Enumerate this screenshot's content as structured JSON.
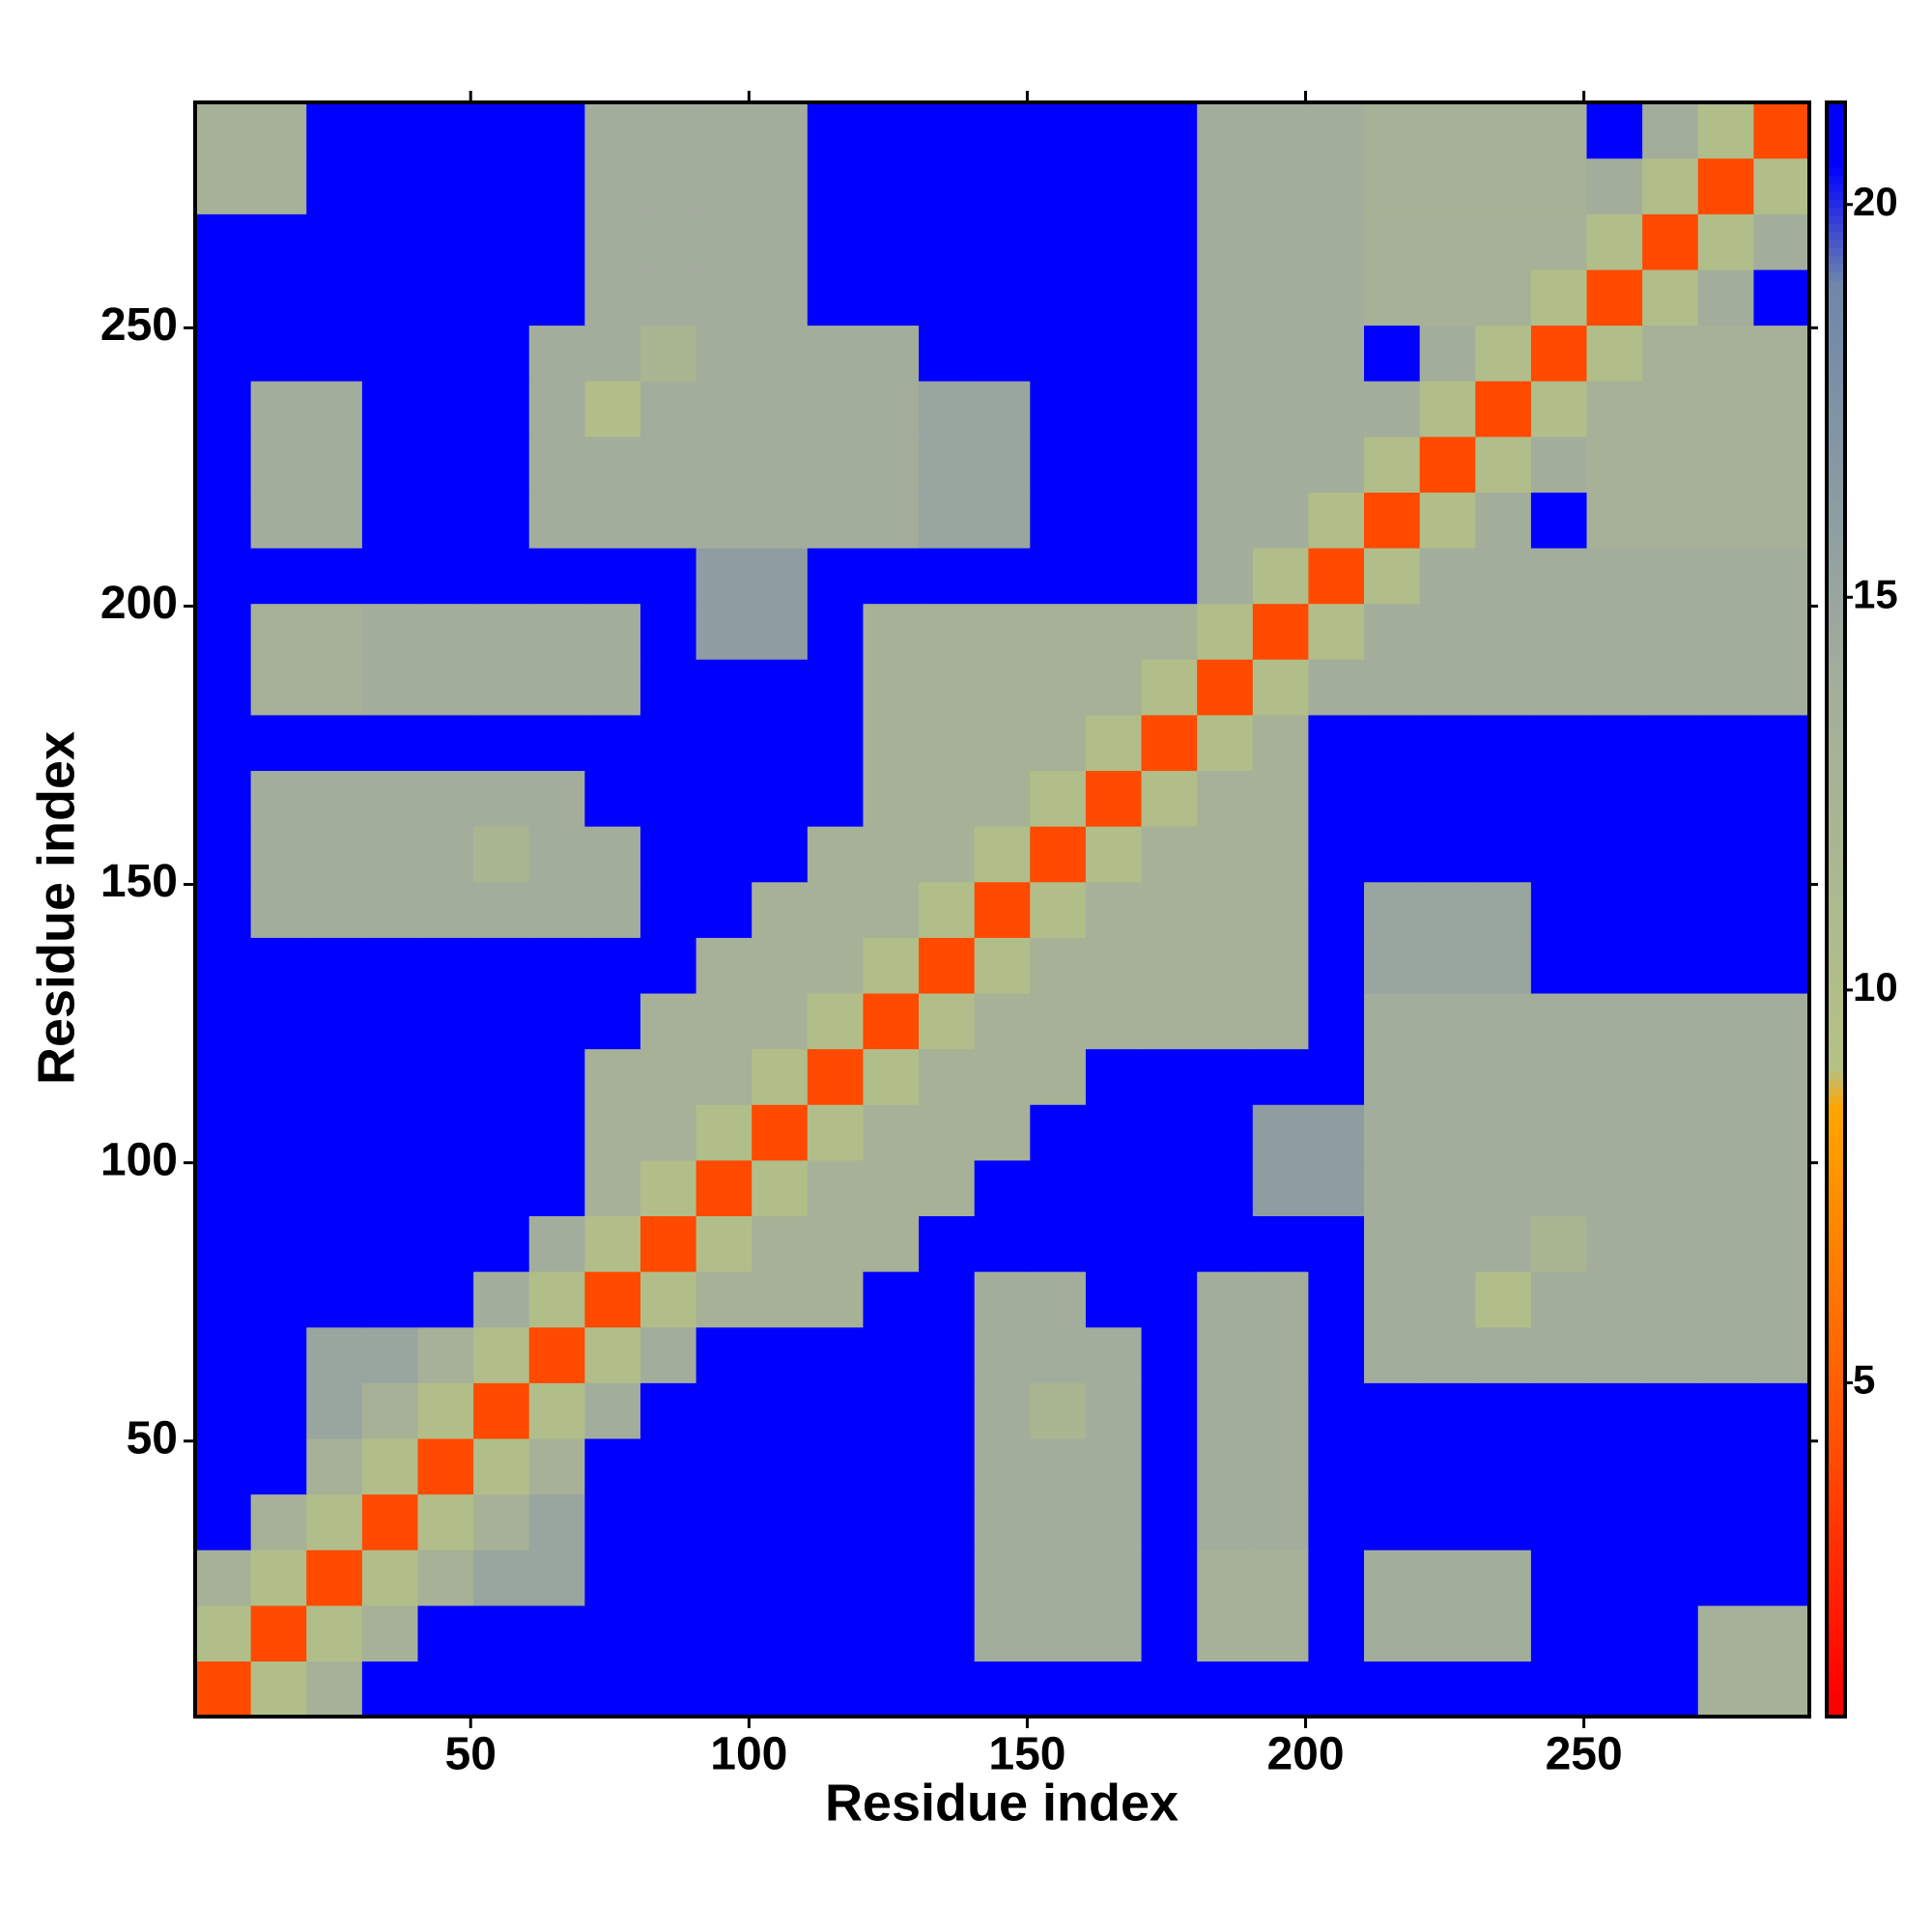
{
  "chart_data": {
    "type": "heatmap",
    "xlabel": "Residue index",
    "ylabel": "Residue index",
    "xlim": [
      0.5,
      290.5
    ],
    "ylim": [
      0.5,
      290.5
    ],
    "xticks": [
      50,
      100,
      150,
      200,
      250
    ],
    "yticks": [
      50,
      100,
      150,
      200,
      250
    ],
    "clim": [
      0.75,
      21.3
    ],
    "cticks": [
      5,
      10,
      15,
      20
    ],
    "colorscale": [
      [
        1,
        "#ff0000"
      ],
      [
        4,
        "#ff4a00"
      ],
      [
        8.5,
        "#ffa500"
      ],
      [
        9,
        "#b4c284"
      ],
      [
        14,
        "#a3ad9c"
      ],
      [
        19,
        "#6f86aa"
      ],
      [
        20.5,
        "#0000ff"
      ]
    ],
    "x": [
      5.5,
      15.5,
      25.5,
      35.5,
      45.5,
      55.5,
      65.5,
      75.5,
      85.5,
      95.5,
      105.5,
      115.5,
      125.5,
      135.5,
      145.5,
      155.5,
      165.5,
      175.5,
      185.5,
      195.5,
      205.5,
      215.5,
      225.5,
      235.5,
      245.5,
      255.5,
      265.5,
      275.5,
      285.5
    ],
    "y": [
      5.5,
      15.5,
      25.5,
      35.5,
      45.5,
      55.5,
      65.5,
      75.5,
      85.5,
      95.5,
      105.5,
      115.5,
      125.5,
      135.5,
      145.5,
      155.5,
      165.5,
      175.5,
      185.5,
      195.5,
      205.5,
      215.5,
      225.5,
      235.5,
      245.5,
      255.5,
      265.5,
      275.5,
      285.5
    ],
    "z": [
      [
        4,
        10,
        13,
        21,
        21,
        21,
        21,
        21,
        21,
        21,
        21,
        21,
        21,
        21,
        21,
        21,
        21,
        21,
        21,
        21,
        21,
        21,
        21,
        21,
        21,
        21,
        21,
        13,
        13
      ],
      [
        10,
        4,
        10,
        13,
        21,
        21,
        21,
        21,
        21,
        21,
        21,
        21,
        21,
        21,
        14,
        14,
        14,
        21,
        13,
        13,
        21,
        14,
        14,
        14,
        21,
        21,
        21,
        13,
        13
      ],
      [
        13,
        10,
        4,
        10,
        13,
        15,
        15,
        21,
        21,
        21,
        21,
        21,
        21,
        21,
        14,
        14,
        14,
        21,
        13,
        13,
        21,
        14,
        14,
        14,
        21,
        21,
        21,
        21,
        21
      ],
      [
        21,
        13,
        10,
        4,
        10,
        13,
        15,
        21,
        21,
        21,
        21,
        21,
        21,
        21,
        14,
        14,
        14,
        21,
        14,
        14,
        21,
        21,
        21,
        21,
        21,
        21,
        21,
        21,
        21
      ],
      [
        21,
        21,
        13,
        10,
        4,
        10,
        13,
        21,
        21,
        21,
        21,
        21,
        21,
        21,
        14,
        14,
        14,
        21,
        14,
        14,
        21,
        21,
        21,
        21,
        21,
        21,
        21,
        21,
        21
      ],
      [
        21,
        21,
        15,
        13,
        10,
        4,
        10,
        14,
        21,
        21,
        21,
        21,
        21,
        21,
        14,
        12,
        14,
        21,
        14,
        14,
        21,
        21,
        21,
        21,
        21,
        21,
        21,
        21,
        21
      ],
      [
        21,
        21,
        15,
        15,
        13,
        10,
        4,
        10,
        14,
        21,
        21,
        21,
        21,
        21,
        14,
        14,
        14,
        21,
        14,
        14,
        21,
        14,
        14,
        14,
        14,
        14,
        14,
        14,
        14
      ],
      [
        21,
        21,
        21,
        21,
        21,
        14,
        10,
        4,
        10,
        13,
        13,
        13,
        21,
        21,
        14,
        14,
        21,
        21,
        14,
        14,
        21,
        14,
        14,
        10,
        14,
        14,
        14,
        14,
        14
      ],
      [
        21,
        21,
        21,
        21,
        21,
        21,
        14,
        10,
        4,
        10,
        13,
        13,
        13,
        21,
        21,
        21,
        21,
        21,
        21,
        21,
        21,
        14,
        14,
        14,
        12,
        14,
        14,
        14,
        14
      ],
      [
        21,
        21,
        21,
        21,
        21,
        21,
        21,
        13,
        10,
        4,
        10,
        13,
        13,
        13,
        21,
        21,
        21,
        21,
        21,
        16,
        16,
        14,
        14,
        14,
        14,
        14,
        14,
        14,
        14
      ],
      [
        21,
        21,
        21,
        21,
        21,
        21,
        21,
        13,
        13,
        10,
        4,
        10,
        13,
        13,
        13,
        21,
        21,
        21,
        21,
        16,
        16,
        14,
        14,
        14,
        14,
        14,
        14,
        14,
        14
      ],
      [
        21,
        21,
        21,
        21,
        21,
        21,
        21,
        13,
        13,
        13,
        10,
        4,
        10,
        13,
        13,
        13,
        21,
        21,
        21,
        21,
        21,
        14,
        14,
        14,
        14,
        14,
        14,
        14,
        14
      ],
      [
        21,
        21,
        21,
        21,
        21,
        21,
        21,
        21,
        13,
        13,
        13,
        10,
        4,
        10,
        13,
        13,
        13,
        13,
        13,
        13,
        21,
        14,
        14,
        14,
        14,
        14,
        14,
        14,
        14
      ],
      [
        21,
        21,
        21,
        21,
        21,
        21,
        21,
        21,
        21,
        13,
        13,
        13,
        10,
        4,
        10,
        13,
        13,
        13,
        13,
        13,
        21,
        15,
        15,
        15,
        21,
        21,
        21,
        21,
        21
      ],
      [
        21,
        14,
        14,
        14,
        14,
        14,
        14,
        14,
        21,
        21,
        13,
        13,
        13,
        10,
        4,
        10,
        13,
        13,
        13,
        13,
        21,
        15,
        15,
        15,
        21,
        21,
        21,
        21,
        21
      ],
      [
        21,
        14,
        14,
        14,
        14,
        12,
        14,
        14,
        21,
        21,
        21,
        13,
        13,
        13,
        10,
        4,
        10,
        13,
        13,
        13,
        21,
        21,
        21,
        21,
        21,
        21,
        21,
        21,
        21
      ],
      [
        21,
        14,
        14,
        14,
        14,
        14,
        14,
        21,
        21,
        21,
        21,
        21,
        13,
        13,
        13,
        10,
        4,
        10,
        13,
        13,
        21,
        21,
        21,
        21,
        21,
        21,
        21,
        21,
        21
      ],
      [
        21,
        21,
        21,
        21,
        21,
        21,
        21,
        21,
        21,
        21,
        21,
        21,
        13,
        13,
        13,
        13,
        10,
        4,
        10,
        13,
        21,
        21,
        21,
        21,
        21,
        21,
        21,
        21,
        21
      ],
      [
        21,
        13,
        13,
        14,
        14,
        14,
        14,
        14,
        21,
        21,
        21,
        21,
        13,
        13,
        13,
        13,
        13,
        10,
        4,
        10,
        14,
        14,
        14,
        14,
        14,
        14,
        14,
        14,
        14
      ],
      [
        21,
        13,
        13,
        14,
        14,
        14,
        14,
        14,
        21,
        16,
        16,
        21,
        13,
        13,
        13,
        13,
        13,
        13,
        10,
        4,
        10,
        14,
        14,
        14,
        14,
        14,
        14,
        14,
        14
      ],
      [
        21,
        21,
        21,
        21,
        21,
        21,
        21,
        21,
        21,
        16,
        16,
        21,
        21,
        21,
        21,
        21,
        21,
        21,
        14,
        10,
        4,
        10,
        14,
        14,
        14,
        14,
        14,
        14,
        14
      ],
      [
        21,
        14,
        14,
        21,
        21,
        21,
        14,
        14,
        14,
        14,
        14,
        14,
        14,
        15,
        15,
        21,
        21,
        21,
        14,
        14,
        10,
        4,
        10,
        14,
        21,
        13,
        13,
        13,
        13
      ],
      [
        21,
        14,
        14,
        21,
        21,
        21,
        14,
        14,
        14,
        14,
        14,
        14,
        14,
        15,
        15,
        21,
        21,
        21,
        14,
        14,
        14,
        10,
        4,
        10,
        14,
        13,
        13,
        13,
        13
      ],
      [
        21,
        14,
        14,
        21,
        21,
        21,
        14,
        10,
        14,
        14,
        14,
        14,
        14,
        15,
        15,
        21,
        21,
        21,
        14,
        14,
        14,
        14,
        10,
        4,
        10,
        13,
        13,
        13,
        13
      ],
      [
        21,
        21,
        21,
        21,
        21,
        21,
        14,
        14,
        12,
        14,
        14,
        14,
        14,
        21,
        21,
        21,
        21,
        21,
        14,
        14,
        14,
        21,
        14,
        10,
        4,
        10,
        13,
        13,
        13
      ],
      [
        21,
        21,
        21,
        21,
        21,
        21,
        21,
        14,
        14,
        14,
        14,
        21,
        21,
        21,
        21,
        21,
        21,
        21,
        14,
        14,
        14,
        13,
        13,
        13,
        10,
        4,
        10,
        14,
        21
      ],
      [
        21,
        21,
        21,
        21,
        21,
        21,
        21,
        14,
        14,
        14,
        14,
        21,
        21,
        21,
        21,
        21,
        21,
        21,
        14,
        14,
        14,
        13,
        13,
        13,
        13,
        10,
        4,
        10,
        14
      ],
      [
        13,
        13,
        21,
        21,
        21,
        21,
        21,
        14,
        14,
        14,
        14,
        21,
        21,
        21,
        21,
        21,
        21,
        21,
        14,
        14,
        14,
        13,
        13,
        13,
        13,
        14,
        10,
        4,
        10
      ],
      [
        13,
        13,
        21,
        21,
        21,
        21,
        21,
        14,
        14,
        14,
        14,
        21,
        21,
        21,
        21,
        21,
        21,
        21,
        14,
        14,
        14,
        13,
        13,
        13,
        13,
        21,
        14,
        10,
        4
      ]
    ]
  }
}
